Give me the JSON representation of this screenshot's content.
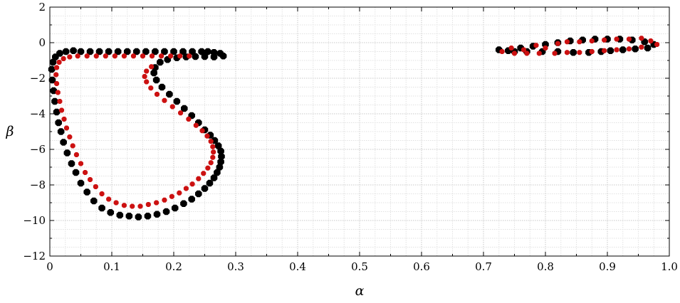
{
  "chart_data": {
    "type": "scatter",
    "xlabel": "α",
    "ylabel": "β",
    "xlim": [
      0,
      1.0
    ],
    "ylim": [
      -12,
      2
    ],
    "x_ticks": [
      0,
      0.1,
      0.2,
      0.3,
      0.4,
      0.5,
      0.6,
      0.7,
      0.8,
      0.9,
      1.0
    ],
    "x_tick_labels": [
      "0",
      "0.1",
      "0.2",
      "0.3",
      "0.4",
      "0.5",
      "0.6",
      "0.7",
      "0.8",
      "0.9",
      "1.0"
    ],
    "y_ticks": [
      2,
      0,
      -2,
      -4,
      -6,
      -8,
      -10,
      -12
    ],
    "y_tick_labels": [
      "2",
      "0",
      "−2",
      "−4",
      "−6",
      "−8",
      "−10",
      "−12"
    ],
    "grid": true,
    "grid_style": "dotted",
    "legend": "none",
    "series": [
      {
        "color": "#000000",
        "marker": "octagon",
        "points": [
          [
            0.28,
            -0.75
          ],
          [
            0.275,
            -0.6
          ],
          [
            0.265,
            -0.55
          ],
          [
            0.255,
            -0.5
          ],
          [
            0.245,
            -0.5
          ],
          [
            0.23,
            -0.5
          ],
          [
            0.215,
            -0.5
          ],
          [
            0.2,
            -0.5
          ],
          [
            0.185,
            -0.5
          ],
          [
            0.17,
            -0.5
          ],
          [
            0.155,
            -0.5
          ],
          [
            0.14,
            -0.5
          ],
          [
            0.125,
            -0.5
          ],
          [
            0.11,
            -0.5
          ],
          [
            0.095,
            -0.5
          ],
          [
            0.08,
            -0.5
          ],
          [
            0.065,
            -0.5
          ],
          [
            0.05,
            -0.5
          ],
          [
            0.038,
            -0.45
          ],
          [
            0.026,
            -0.5
          ],
          [
            0.016,
            -0.6
          ],
          [
            0.009,
            -0.8
          ],
          [
            0.005,
            -1.1
          ],
          [
            0.003,
            -1.5
          ],
          [
            0.004,
            -2.1
          ],
          [
            0.006,
            -2.7
          ],
          [
            0.008,
            -3.3
          ],
          [
            0.011,
            -3.9
          ],
          [
            0.014,
            -4.5
          ],
          [
            0.018,
            -5.0
          ],
          [
            0.022,
            -5.6
          ],
          [
            0.028,
            -6.2
          ],
          [
            0.035,
            -6.8
          ],
          [
            0.042,
            -7.3
          ],
          [
            0.05,
            -7.9
          ],
          [
            0.06,
            -8.4
          ],
          [
            0.071,
            -8.9
          ],
          [
            0.084,
            -9.3
          ],
          [
            0.098,
            -9.55
          ],
          [
            0.113,
            -9.7
          ],
          [
            0.128,
            -9.75
          ],
          [
            0.143,
            -9.8
          ],
          [
            0.158,
            -9.75
          ],
          [
            0.173,
            -9.65
          ],
          [
            0.188,
            -9.5
          ],
          [
            0.202,
            -9.3
          ],
          [
            0.216,
            -9.05
          ],
          [
            0.229,
            -8.8
          ],
          [
            0.24,
            -8.5
          ],
          [
            0.25,
            -8.2
          ],
          [
            0.258,
            -7.9
          ],
          [
            0.265,
            -7.6
          ],
          [
            0.27,
            -7.3
          ],
          [
            0.274,
            -7.0
          ],
          [
            0.276,
            -6.7
          ],
          [
            0.277,
            -6.4
          ],
          [
            0.276,
            -6.1
          ],
          [
            0.272,
            -5.8
          ],
          [
            0.266,
            -5.5
          ],
          [
            0.259,
            -5.2
          ],
          [
            0.25,
            -4.9
          ],
          [
            0.24,
            -4.5
          ],
          [
            0.229,
            -4.1
          ],
          [
            0.217,
            -3.7
          ],
          [
            0.205,
            -3.3
          ],
          [
            0.193,
            -2.9
          ],
          [
            0.181,
            -2.5
          ],
          [
            0.172,
            -2.1
          ],
          [
            0.168,
            -1.7
          ],
          [
            0.17,
            -1.4
          ],
          [
            0.178,
            -1.1
          ],
          [
            0.19,
            -0.95
          ],
          [
            0.205,
            -0.85
          ],
          [
            0.22,
            -0.8
          ],
          [
            0.235,
            -0.78
          ],
          [
            0.25,
            -0.78
          ],
          [
            0.265,
            -0.8
          ],
          [
            0.725,
            -0.4
          ],
          [
            0.74,
            -0.45
          ],
          [
            0.76,
            -0.3
          ],
          [
            0.78,
            -0.2
          ],
          [
            0.8,
            -0.1
          ],
          [
            0.82,
            0.0
          ],
          [
            0.84,
            0.1
          ],
          [
            0.86,
            0.15
          ],
          [
            0.88,
            0.2
          ],
          [
            0.9,
            0.2
          ],
          [
            0.92,
            0.2
          ],
          [
            0.94,
            0.15
          ],
          [
            0.96,
            0.05
          ],
          [
            0.975,
            -0.1
          ],
          [
            0.965,
            -0.3
          ],
          [
            0.945,
            -0.35
          ],
          [
            0.925,
            -0.4
          ],
          [
            0.905,
            -0.45
          ],
          [
            0.89,
            -0.5
          ],
          [
            0.87,
            -0.55
          ],
          [
            0.845,
            -0.55
          ],
          [
            0.82,
            -0.5
          ],
          [
            0.795,
            -0.5
          ],
          [
            0.77,
            -0.5
          ],
          [
            0.75,
            -0.5
          ]
        ]
      },
      {
        "color": "#cc1111",
        "marker": "octagon",
        "points": [
          [
            0.225,
            -0.75
          ],
          [
            0.21,
            -0.75
          ],
          [
            0.195,
            -0.75
          ],
          [
            0.18,
            -0.75
          ],
          [
            0.165,
            -0.75
          ],
          [
            0.15,
            -0.75
          ],
          [
            0.135,
            -0.75
          ],
          [
            0.12,
            -0.75
          ],
          [
            0.105,
            -0.75
          ],
          [
            0.09,
            -0.75
          ],
          [
            0.075,
            -0.75
          ],
          [
            0.06,
            -0.75
          ],
          [
            0.045,
            -0.75
          ],
          [
            0.032,
            -0.8
          ],
          [
            0.022,
            -0.9
          ],
          [
            0.015,
            -1.1
          ],
          [
            0.011,
            -1.4
          ],
          [
            0.01,
            -1.8
          ],
          [
            0.011,
            -2.3
          ],
          [
            0.013,
            -2.8
          ],
          [
            0.016,
            -3.3
          ],
          [
            0.019,
            -3.8
          ],
          [
            0.023,
            -4.3
          ],
          [
            0.027,
            -4.8
          ],
          [
            0.032,
            -5.3
          ],
          [
            0.037,
            -5.8
          ],
          [
            0.043,
            -6.3
          ],
          [
            0.05,
            -6.8
          ],
          [
            0.057,
            -7.3
          ],
          [
            0.065,
            -7.7
          ],
          [
            0.074,
            -8.1
          ],
          [
            0.084,
            -8.5
          ],
          [
            0.095,
            -8.8
          ],
          [
            0.107,
            -9.0
          ],
          [
            0.12,
            -9.15
          ],
          [
            0.133,
            -9.2
          ],
          [
            0.146,
            -9.2
          ],
          [
            0.159,
            -9.1
          ],
          [
            0.172,
            -9.0
          ],
          [
            0.185,
            -8.85
          ],
          [
            0.197,
            -8.65
          ],
          [
            0.209,
            -8.45
          ],
          [
            0.22,
            -8.2
          ],
          [
            0.23,
            -7.95
          ],
          [
            0.24,
            -7.65
          ],
          [
            0.248,
            -7.35
          ],
          [
            0.255,
            -7.05
          ],
          [
            0.26,
            -6.75
          ],
          [
            0.263,
            -6.45
          ],
          [
            0.264,
            -6.15
          ],
          [
            0.263,
            -5.85
          ],
          [
            0.26,
            -5.55
          ],
          [
            0.254,
            -5.25
          ],
          [
            0.246,
            -4.95
          ],
          [
            0.236,
            -4.65
          ],
          [
            0.224,
            -4.3
          ],
          [
            0.211,
            -3.95
          ],
          [
            0.198,
            -3.6
          ],
          [
            0.185,
            -3.25
          ],
          [
            0.173,
            -2.9
          ],
          [
            0.163,
            -2.55
          ],
          [
            0.156,
            -2.2
          ],
          [
            0.153,
            -1.9
          ],
          [
            0.156,
            -1.6
          ],
          [
            0.164,
            -1.35
          ],
          [
            0.73,
            -0.5
          ],
          [
            0.745,
            -0.3
          ],
          [
            0.765,
            -0.4
          ],
          [
            0.785,
            -0.15
          ],
          [
            0.8,
            -0.3
          ],
          [
            0.82,
            -0.05
          ],
          [
            0.835,
            0.05
          ],
          [
            0.855,
            0.05
          ],
          [
            0.875,
            0.1
          ],
          [
            0.895,
            0.15
          ],
          [
            0.915,
            0.2
          ],
          [
            0.935,
            0.2
          ],
          [
            0.955,
            0.25
          ],
          [
            0.97,
            0.1
          ],
          [
            0.98,
            -0.1
          ],
          [
            0.955,
            -0.25
          ],
          [
            0.935,
            -0.35
          ],
          [
            0.915,
            -0.4
          ],
          [
            0.895,
            -0.45
          ],
          [
            0.875,
            -0.5
          ],
          [
            0.855,
            -0.55
          ],
          [
            0.835,
            -0.55
          ],
          [
            0.815,
            -0.6
          ],
          [
            0.79,
            -0.6
          ],
          [
            0.77,
            -0.6
          ],
          [
            0.75,
            -0.6
          ]
        ]
      }
    ]
  }
}
